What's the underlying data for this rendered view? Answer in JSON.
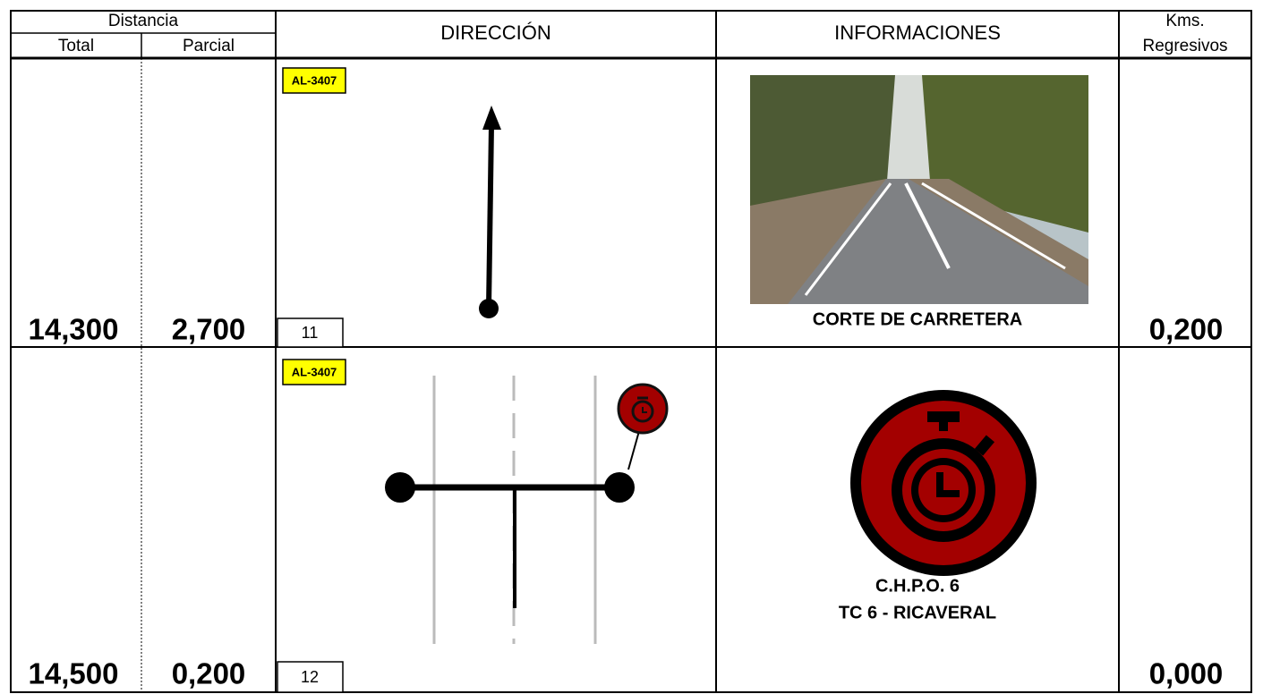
{
  "header": {
    "distancia": "Distancia",
    "total": "Total",
    "parcial": "Parcial",
    "direccion": "DIRECCIÓN",
    "informaciones": "INFORMACIONES",
    "kms_regresivos": [
      "Kms.",
      "Regresivos"
    ]
  },
  "rows": [
    {
      "total": "14,300",
      "parcial": "2,700",
      "road": "AL-3407",
      "number": "11",
      "info": [
        "CORTE DE CARRETERA"
      ],
      "kms": "0,200"
    },
    {
      "total": "14,500",
      "parcial": "0,200",
      "road": "AL-3407",
      "number": "12",
      "info": [
        "C.H.P.O. 6",
        "TC 6 - RICAVERAL"
      ],
      "kms": "0,000"
    }
  ]
}
